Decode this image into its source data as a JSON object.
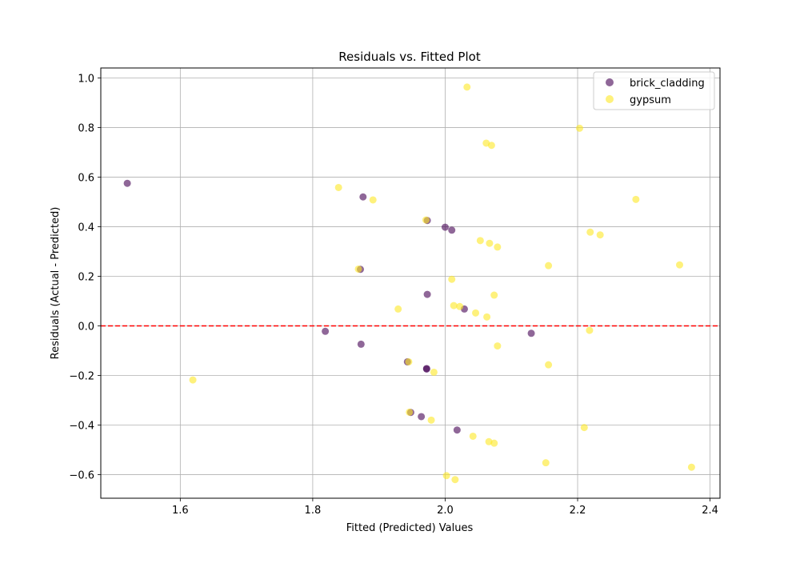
{
  "chart_data": {
    "type": "scatter",
    "title": "Residuals vs. Fitted Plot",
    "xlabel": "Fitted (Predicted) Values",
    "ylabel": "Residuals (Actual - Predicted)",
    "xlim": [
      1.48,
      2.415
    ],
    "ylim": [
      -0.695,
      1.04
    ],
    "xticks": [
      1.6,
      1.8,
      2.0,
      2.2,
      2.4
    ],
    "yticks": [
      -0.6,
      -0.4,
      -0.2,
      0.0,
      0.2,
      0.4,
      0.6,
      0.8,
      1.0
    ],
    "grid": true,
    "legend_position": "top-right",
    "reference_line": {
      "y": 0.0,
      "color": "#ff0000",
      "style": "dashed"
    },
    "series": [
      {
        "name": "brick_cladding",
        "color": "#440154",
        "points": [
          {
            "x": 1.52,
            "y": 0.575
          },
          {
            "x": 1.876,
            "y": 0.52
          },
          {
            "x": 1.973,
            "y": 0.425
          },
          {
            "x": 2.0,
            "y": 0.398
          },
          {
            "x": 2.01,
            "y": 0.386
          },
          {
            "x": 1.872,
            "y": 0.228
          },
          {
            "x": 1.973,
            "y": 0.127
          },
          {
            "x": 2.029,
            "y": 0.068
          },
          {
            "x": 1.819,
            "y": -0.022
          },
          {
            "x": 2.13,
            "y": -0.03
          },
          {
            "x": 1.873,
            "y": -0.074
          },
          {
            "x": 1.943,
            "y": -0.145
          },
          {
            "x": 1.972,
            "y": -0.172
          },
          {
            "x": 1.972,
            "y": -0.174
          },
          {
            "x": 1.948,
            "y": -0.349
          },
          {
            "x": 1.964,
            "y": -0.366
          },
          {
            "x": 2.018,
            "y": -0.42
          }
        ]
      },
      {
        "name": "gypsum",
        "color": "#fde725",
        "points": [
          {
            "x": 2.033,
            "y": 0.963
          },
          {
            "x": 2.203,
            "y": 0.797
          },
          {
            "x": 2.062,
            "y": 0.737
          },
          {
            "x": 2.07,
            "y": 0.728
          },
          {
            "x": 1.839,
            "y": 0.558
          },
          {
            "x": 1.891,
            "y": 0.508
          },
          {
            "x": 2.288,
            "y": 0.51
          },
          {
            "x": 1.971,
            "y": 0.427
          },
          {
            "x": 2.219,
            "y": 0.378
          },
          {
            "x": 2.234,
            "y": 0.367
          },
          {
            "x": 2.053,
            "y": 0.344
          },
          {
            "x": 2.067,
            "y": 0.333
          },
          {
            "x": 2.079,
            "y": 0.318
          },
          {
            "x": 2.156,
            "y": 0.243
          },
          {
            "x": 2.354,
            "y": 0.246
          },
          {
            "x": 1.869,
            "y": 0.229
          },
          {
            "x": 2.01,
            "y": 0.188
          },
          {
            "x": 2.074,
            "y": 0.124
          },
          {
            "x": 2.013,
            "y": 0.082
          },
          {
            "x": 2.022,
            "y": 0.078
          },
          {
            "x": 1.929,
            "y": 0.068
          },
          {
            "x": 2.046,
            "y": 0.052
          },
          {
            "x": 2.063,
            "y": 0.036
          },
          {
            "x": 2.218,
            "y": -0.018
          },
          {
            "x": 2.079,
            "y": -0.081
          },
          {
            "x": 1.945,
            "y": -0.145
          },
          {
            "x": 2.156,
            "y": -0.157
          },
          {
            "x": 1.983,
            "y": -0.187
          },
          {
            "x": 1.619,
            "y": -0.218
          },
          {
            "x": 1.946,
            "y": -0.348
          },
          {
            "x": 1.979,
            "y": -0.38
          },
          {
            "x": 2.21,
            "y": -0.41
          },
          {
            "x": 2.042,
            "y": -0.445
          },
          {
            "x": 2.066,
            "y": -0.467
          },
          {
            "x": 2.074,
            "y": -0.473
          },
          {
            "x": 2.152,
            "y": -0.552
          },
          {
            "x": 2.372,
            "y": -0.57
          },
          {
            "x": 2.002,
            "y": -0.604
          },
          {
            "x": 2.015,
            "y": -0.62
          }
        ]
      }
    ]
  }
}
